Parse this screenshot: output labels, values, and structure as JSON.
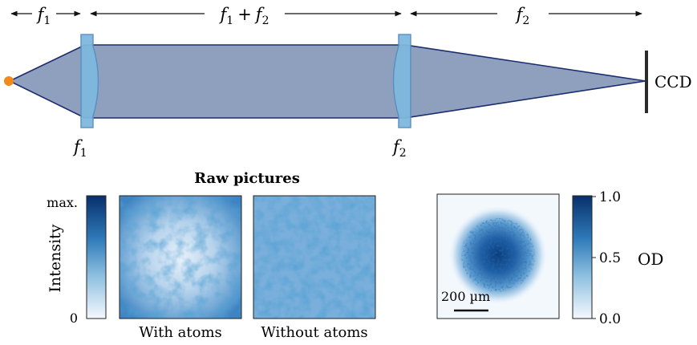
{
  "optics": {
    "dist_f1": "f",
    "dist_f1_sub": "1",
    "dist_sum_a": "f",
    "dist_sum_a_sub": "1",
    "dist_sum_plus": "+",
    "dist_sum_b": "f",
    "dist_sum_b_sub": "2",
    "dist_f2": "f",
    "dist_f2_sub": "2",
    "lens1_label": "f",
    "lens1_sub": "1",
    "lens2_label": "f",
    "lens2_sub": "2",
    "ccd_label": "CCD"
  },
  "raw": {
    "title": "Raw pictures",
    "colorbar_max": "max.",
    "colorbar_min": "0",
    "colorbar_label": "Intensity",
    "with_atoms": "With atoms",
    "without_atoms": "Without atoms"
  },
  "od": {
    "scalebar": "200 µm",
    "tick_top": "1.0",
    "tick_mid": "0.5",
    "tick_bottom": "0.0",
    "label": "OD"
  },
  "colors": {
    "beam": "#8fa0be",
    "lens": "#7fb8de",
    "source": "#f08a1a",
    "cmap_dark": "#08306b",
    "cmap_mid": "#4a90c6",
    "cmap_light": "#f2f7fd"
  }
}
